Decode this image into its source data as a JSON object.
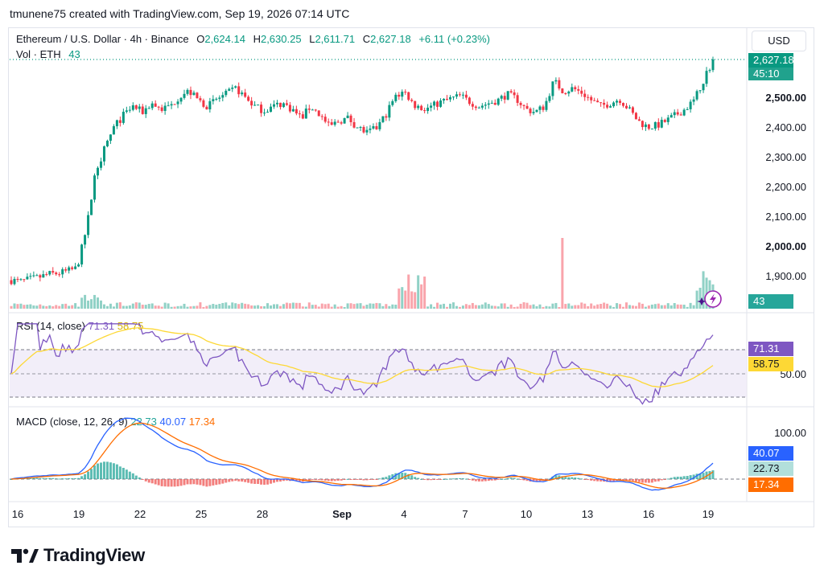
{
  "caption": "tmunene75 created with TradingView.com, Sep 19, 2026 07:14 UTC",
  "brand": "TradingView",
  "currency": "USD",
  "colors": {
    "up": "#089981",
    "down": "#f23645",
    "rsi": "#7e57c2",
    "rsi_ma": "#fdd835",
    "macd": "#2962ff",
    "signal": "#ff6d00"
  },
  "legend": {
    "symbol": "Ethereum / U.S. Dollar · 4h · Binance",
    "open_label": "O",
    "open": "2,624.14",
    "high_label": "H",
    "high": "2,630.25",
    "low_label": "L",
    "low": "2,611.71",
    "close_label": "C",
    "close": "2,627.18",
    "change": "+6.11 (+0.23%)",
    "vol_label": "Vol · ETH",
    "vol": "43"
  },
  "rsi_legend": {
    "label": "RSI (14, close)",
    "v1": "71.31",
    "v2": "58.75"
  },
  "macd_legend": {
    "label": "MACD (close, 12, 26, 9)",
    "v1": "22.73",
    "v2": "40.07",
    "v3": "17.34"
  },
  "tags": {
    "price": "2,627.18",
    "countdown": "45:10",
    "vol": "43",
    "rsi": "71.31",
    "rsi_ma": "58.75",
    "macd": "40.07",
    "hist": "22.73",
    "signal": "17.34"
  },
  "rsi_axis_label": "50.00",
  "macd_axis_label": "100.00",
  "chart_data": {
    "type": "candlestick",
    "price_axis": {
      "ticks": [
        "2,500.00",
        "2,400.00",
        "2,300.00",
        "2,200.00",
        "2,100.00",
        "2,000.00",
        "1,900.00"
      ],
      "values": [
        2500,
        2400,
        2300,
        2200,
        2100,
        2000,
        1900
      ],
      "bold": [
        "2,500.00",
        "2,000.00"
      ]
    },
    "x_ticks": [
      "16",
      "19",
      "22",
      "25",
      "28",
      "Sep",
      "4",
      "7",
      "10",
      "13",
      "16",
      "19"
    ],
    "close_path": [
      1885,
      1880,
      1888,
      1895,
      1905,
      1908,
      1915,
      1925,
      2050,
      2250,
      2330,
      2400,
      2440,
      2470,
      2450,
      2480,
      2460,
      2470,
      2505,
      2520,
      2490,
      2470,
      2495,
      2510,
      2530,
      2500,
      2470,
      2455,
      2470,
      2480,
      2460,
      2430,
      2470,
      2440,
      2400,
      2420,
      2430,
      2400,
      2380,
      2395,
      2440,
      2500,
      2520,
      2475,
      2460,
      2470,
      2485,
      2495,
      2505,
      2485,
      2470,
      2480,
      2490,
      2510,
      2495,
      2460,
      2450,
      2470,
      2555,
      2520,
      2530,
      2515,
      2490,
      2470,
      2480,
      2495,
      2460,
      2420,
      2400,
      2405,
      2420,
      2440,
      2460,
      2490,
      2560,
      2625
    ],
    "rsi_levels": [
      70,
      50,
      30
    ],
    "macd_level": 0
  }
}
